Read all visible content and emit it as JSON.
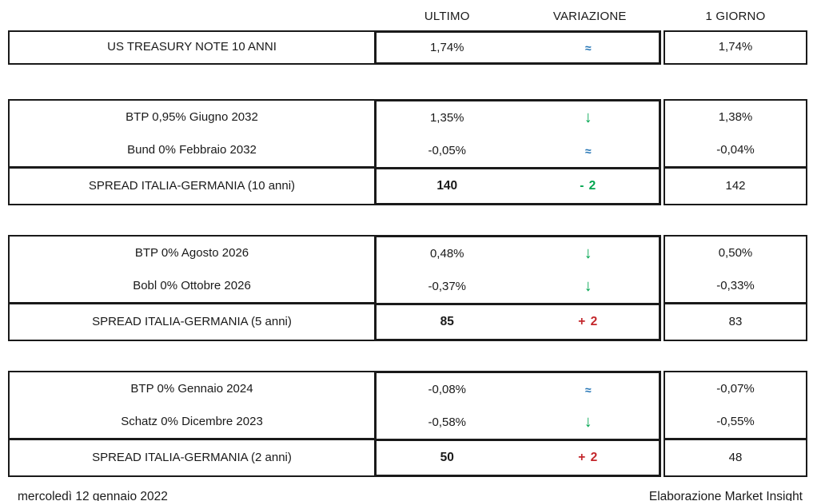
{
  "columns": {
    "ultimo": "ULTIMO",
    "variazione": "VARIAZIONE",
    "giorno": "1 GIORNO"
  },
  "colors": {
    "down_green": "#00A650",
    "flat_blue": "#2173B4",
    "up_red": "#C3262B",
    "text": "#1a1a1a"
  },
  "blocks": [
    {
      "rows": [
        {
          "label": "US TREASURY NOTE 10 ANNI",
          "ultimo": "1,74%",
          "var": {
            "glyph": "≈",
            "type": "flat",
            "icon": "approx-equal-icon"
          },
          "giorno": "1,74%",
          "spread": false
        }
      ]
    },
    {
      "rows": [
        {
          "label": "BTP 0,95% Giugno 2032",
          "ultimo": "1,35%",
          "var": {
            "glyph": "↓",
            "type": "down",
            "icon": "down-arrow-icon"
          },
          "giorno": "1,38%",
          "spread": false
        },
        {
          "label": "Bund 0% Febbraio 2032",
          "ultimo": "-0,05%",
          "var": {
            "glyph": "≈",
            "type": "flat",
            "icon": "approx-equal-icon"
          },
          "giorno": "-0,04%",
          "spread": false
        },
        {
          "label": "SPREAD ITALIA-GERMANIA (10 anni)",
          "ultimo": "140",
          "var": {
            "glyph": "- 2",
            "type": "numdown",
            "icon": "variazione-value"
          },
          "giorno": "142",
          "spread": true
        }
      ]
    },
    {
      "rows": [
        {
          "label": "BTP 0% Agosto 2026",
          "ultimo": "0,48%",
          "var": {
            "glyph": "↓",
            "type": "down",
            "icon": "down-arrow-icon"
          },
          "giorno": "0,50%",
          "spread": false
        },
        {
          "label": "Bobl 0% Ottobre 2026",
          "ultimo": "-0,37%",
          "var": {
            "glyph": "↓",
            "type": "down",
            "icon": "down-arrow-icon"
          },
          "giorno": "-0,33%",
          "spread": false
        },
        {
          "label": "SPREAD ITALIA-GERMANIA (5 anni)",
          "ultimo": "85",
          "var": {
            "glyph": "+ 2",
            "type": "numup",
            "icon": "variazione-value"
          },
          "giorno": "83",
          "spread": true
        }
      ]
    },
    {
      "rows": [
        {
          "label": "BTP 0% Gennaio 2024",
          "ultimo": "-0,08%",
          "var": {
            "glyph": "≈",
            "type": "flat",
            "icon": "approx-equal-icon"
          },
          "giorno": "-0,07%",
          "spread": false
        },
        {
          "label": "Schatz 0% Dicembre 2023",
          "ultimo": "-0,58%",
          "var": {
            "glyph": "↓",
            "type": "down",
            "icon": "down-arrow-icon"
          },
          "giorno": "-0,55%",
          "spread": false
        },
        {
          "label": "SPREAD ITALIA-GERMANIA (2 anni)",
          "ultimo": "50",
          "var": {
            "glyph": "+ 2",
            "type": "numup",
            "icon": "variazione-value"
          },
          "giorno": "48",
          "spread": true
        }
      ]
    }
  ],
  "footer": {
    "date": "mercoledì 12 gennaio 2022",
    "credit": "Elaborazione Market Insight"
  }
}
